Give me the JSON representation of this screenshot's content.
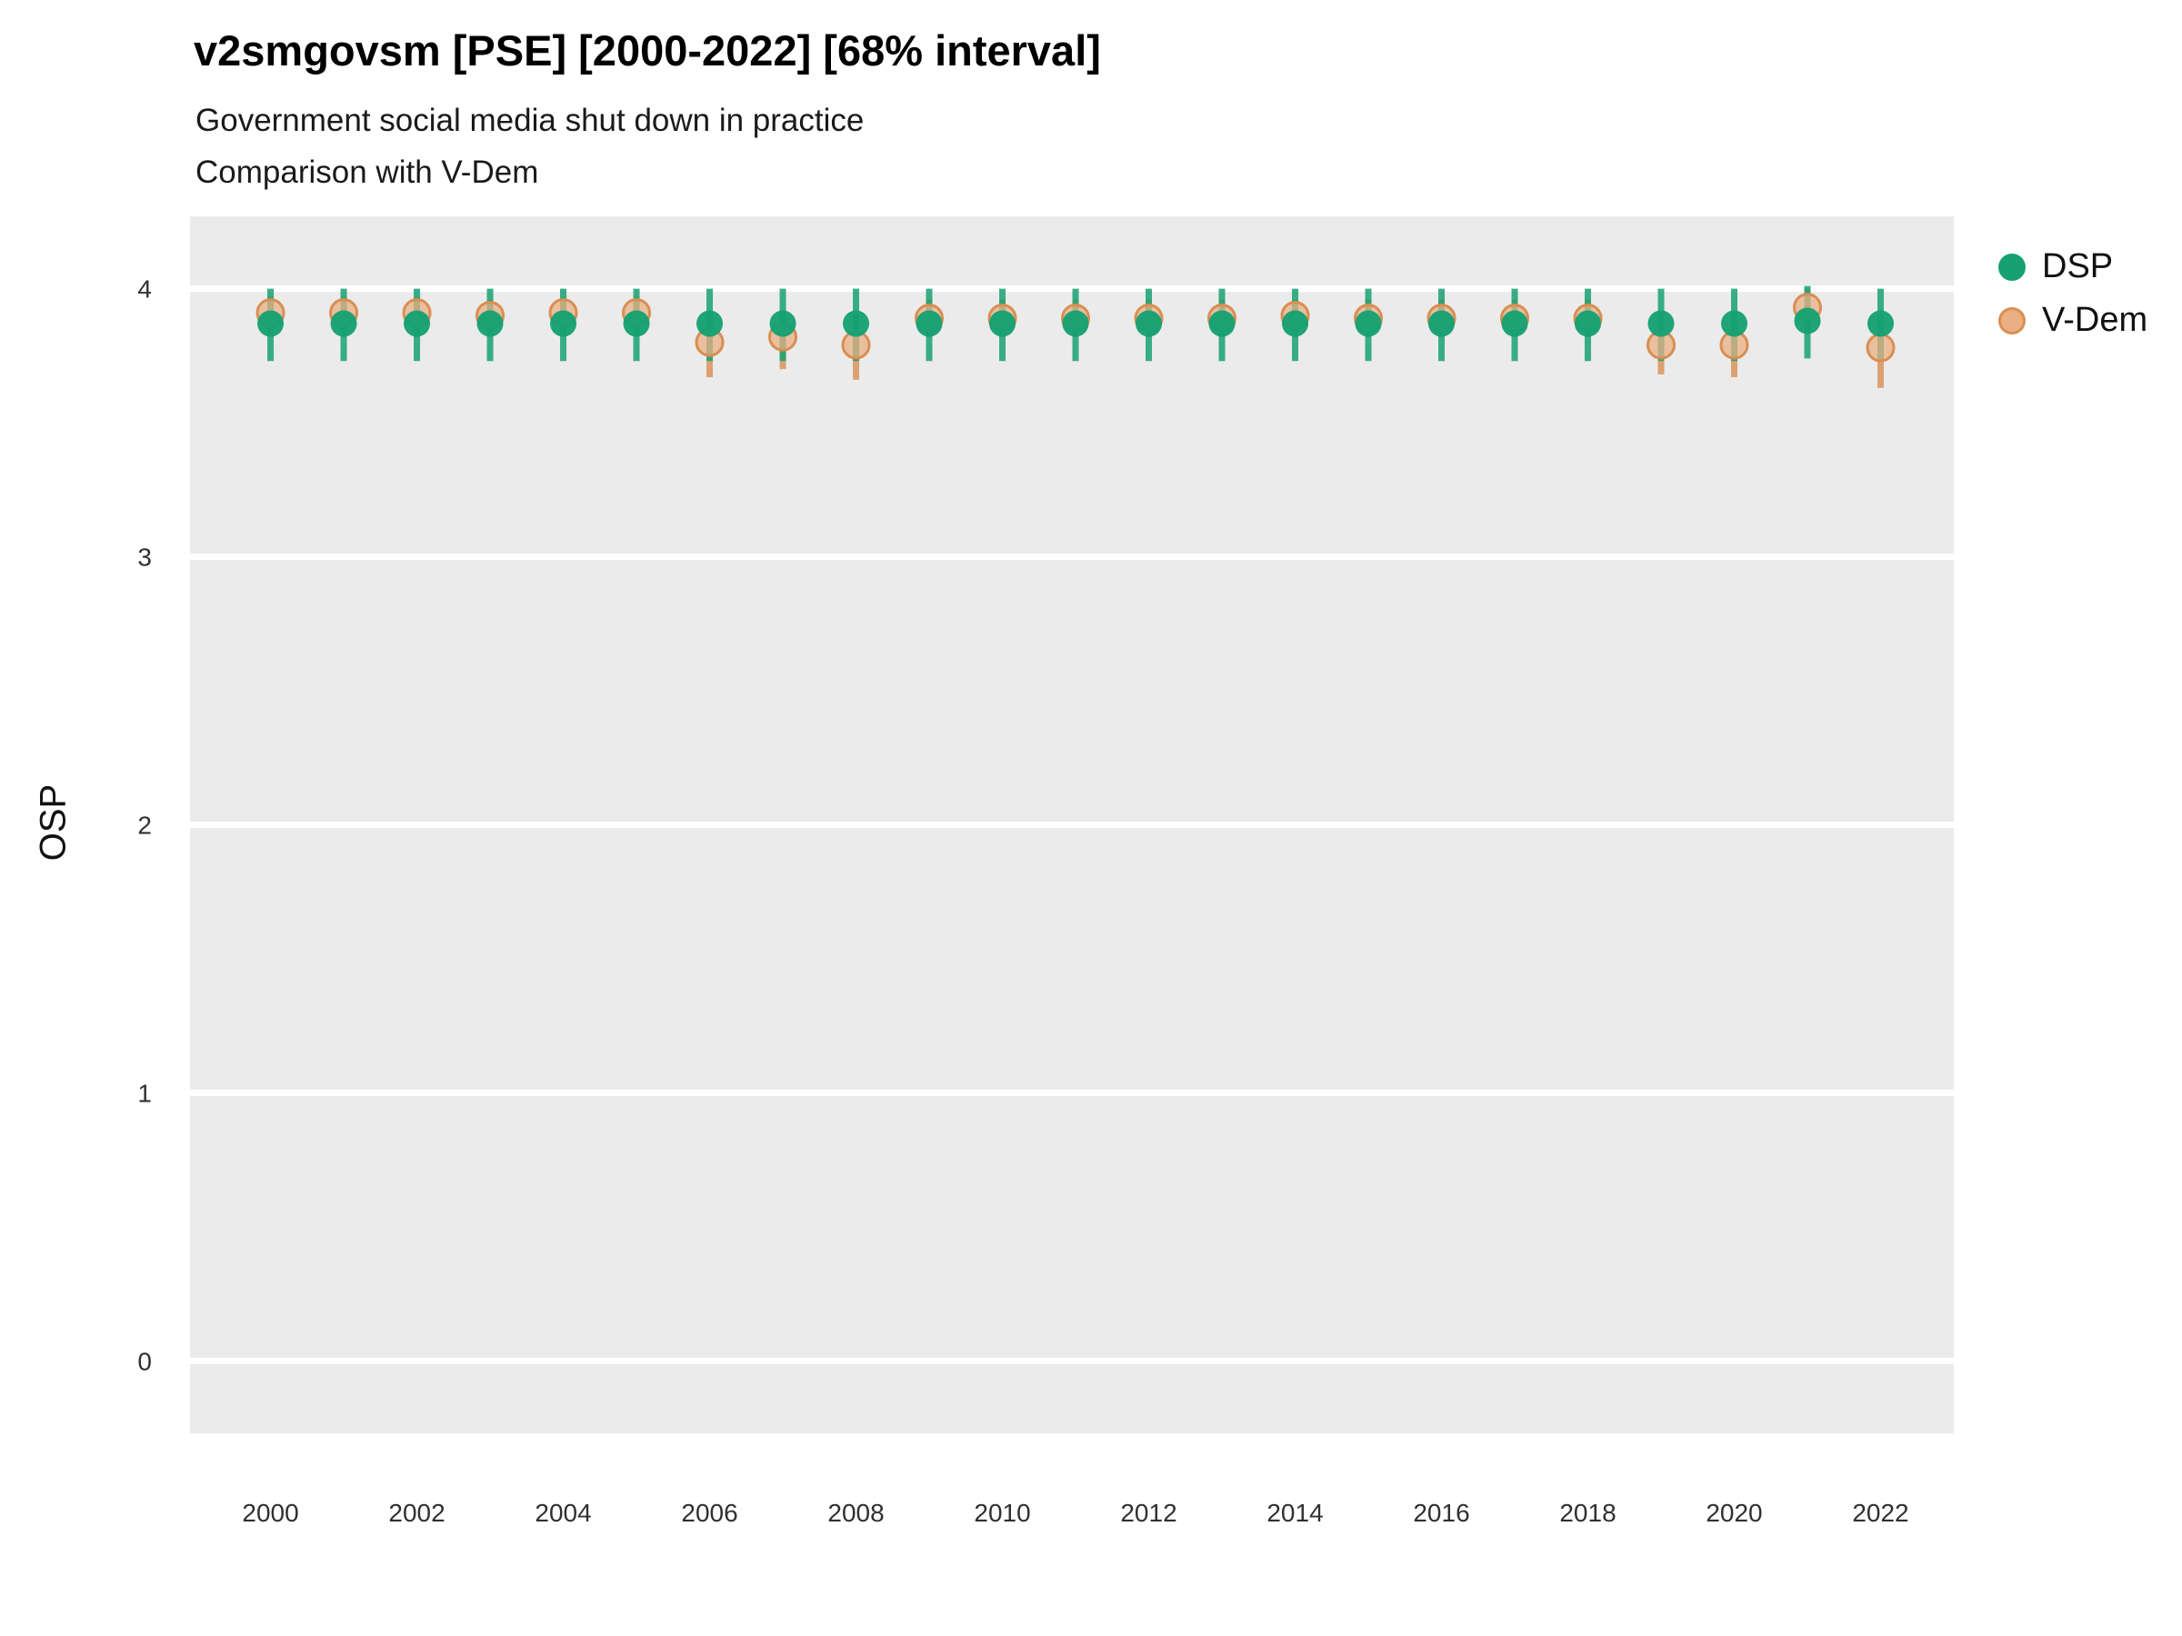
{
  "header": {
    "title": "v2smgovsm [PSE] [2000-2022] [68% interval]",
    "subtitle_line1": "Government social media shut down in practice",
    "subtitle_line2": "Comparison with V-Dem"
  },
  "axes": {
    "y_label": "OSP",
    "y_ticks": [
      0,
      1,
      2,
      3,
      4
    ],
    "x_ticks": [
      2000,
      2002,
      2004,
      2006,
      2008,
      2010,
      2012,
      2014,
      2016,
      2018,
      2020,
      2022
    ],
    "x_range": [
      1998.9,
      2023.0
    ],
    "y_range": [
      -0.27,
      4.27
    ]
  },
  "theme": {
    "panel_bg": "#ebebeb",
    "grid_color": "#ffffff",
    "text_color": "#1a1a1a",
    "tick_color": "#303030"
  },
  "legend": {
    "position": "right"
  },
  "chart_data": {
    "type": "scatter",
    "title": "v2smgovsm [PSE] [2000-2022] [68% interval]",
    "subtitle": "Government social media shut down in practice",
    "comparison_note": "Comparison with V-Dem",
    "interval": "68%",
    "xlabel": "",
    "ylabel": "OSP",
    "ylim": [
      -0.27,
      4.27
    ],
    "grid": "horizontal-only",
    "legend_position": "right",
    "x": [
      2000,
      2001,
      2002,
      2003,
      2004,
      2005,
      2006,
      2007,
      2008,
      2009,
      2010,
      2011,
      2012,
      2013,
      2014,
      2015,
      2016,
      2017,
      2018,
      2019,
      2020,
      2021,
      2022
    ],
    "series": [
      {
        "name": "DSP",
        "color": "#17a173",
        "values": [
          3.87,
          3.87,
          3.87,
          3.87,
          3.87,
          3.87,
          3.87,
          3.87,
          3.87,
          3.87,
          3.87,
          3.87,
          3.87,
          3.87,
          3.87,
          3.87,
          3.87,
          3.87,
          3.87,
          3.87,
          3.87,
          3.88,
          3.87
        ],
        "lower": [
          3.73,
          3.73,
          3.73,
          3.73,
          3.73,
          3.73,
          3.73,
          3.73,
          3.73,
          3.73,
          3.73,
          3.73,
          3.73,
          3.73,
          3.73,
          3.73,
          3.73,
          3.73,
          3.73,
          3.73,
          3.73,
          3.74,
          3.73
        ],
        "upper": [
          4.0,
          4.0,
          4.0,
          4.0,
          4.0,
          4.0,
          4.0,
          4.0,
          4.0,
          4.0,
          4.0,
          4.0,
          4.0,
          4.0,
          4.0,
          4.0,
          4.0,
          4.0,
          4.0,
          4.0,
          4.0,
          4.01,
          4.0
        ]
      },
      {
        "name": "V-Dem",
        "color": "#d98e52",
        "fill": "#eab084",
        "values": [
          3.91,
          3.91,
          3.91,
          3.9,
          3.91,
          3.91,
          3.8,
          3.82,
          3.79,
          3.89,
          3.89,
          3.89,
          3.89,
          3.89,
          3.9,
          3.89,
          3.89,
          3.89,
          3.89,
          3.79,
          3.79,
          3.93,
          3.78
        ],
        "lower": [
          3.84,
          3.84,
          3.84,
          3.83,
          3.84,
          3.84,
          3.67,
          3.7,
          3.66,
          3.82,
          3.82,
          3.82,
          3.82,
          3.82,
          3.83,
          3.82,
          3.82,
          3.82,
          3.82,
          3.68,
          3.67,
          3.85,
          3.63
        ],
        "upper": [
          3.97,
          3.97,
          3.97,
          3.96,
          3.97,
          3.97,
          3.91,
          3.92,
          3.9,
          3.96,
          3.96,
          3.96,
          3.96,
          3.96,
          3.96,
          3.96,
          3.96,
          3.96,
          3.96,
          3.89,
          3.9,
          4.0,
          3.9
        ]
      }
    ]
  }
}
